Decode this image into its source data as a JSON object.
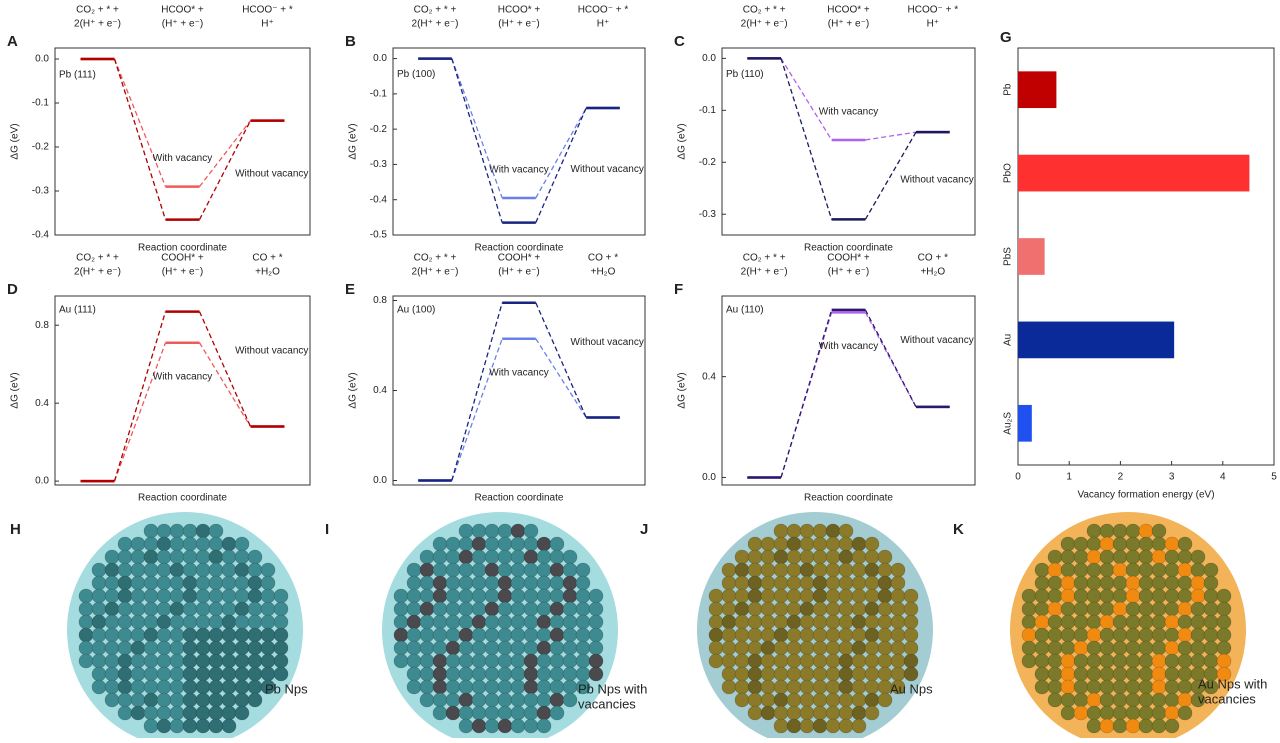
{
  "chart_data": [
    {
      "type": "energy-profile",
      "panel": "A",
      "surface": "Pb (111)",
      "xlabel": "Reaction coordinate",
      "ylabel": "ΔG (eV)",
      "categories": [
        [
          "CO₂ + * +",
          "2(H⁺ + e⁻)"
        ],
        [
          "HCOO* +",
          "(H⁺ + e⁻)"
        ],
        [
          "HCOO⁻ + *",
          "H⁺"
        ]
      ],
      "series": [
        {
          "name": "With vacancy",
          "color": "#f05a5a",
          "values": [
            0,
            -0.29,
            -0.14
          ]
        },
        {
          "name": "Without vacancy",
          "color": "#b00000",
          "values": [
            0,
            -0.365,
            -0.14
          ]
        }
      ],
      "ylim": [
        -0.4,
        0.025
      ],
      "yticks": [
        {
          "value": 0,
          "label": "0.0"
        },
        -0.1,
        -0.2,
        -0.3,
        -0.4
      ]
    },
    {
      "type": "energy-profile",
      "panel": "B",
      "surface": "Pb (100)",
      "xlabel": "Reaction coordinate",
      "ylabel": "ΔG (eV)",
      "categories": [
        [
          "CO₂ + * +",
          "2(H⁺ + e⁻)"
        ],
        [
          "HCOO* +",
          "(H⁺ + e⁻)"
        ],
        [
          "HCOO⁻ + *",
          "H⁺"
        ]
      ],
      "series": [
        {
          "name": "With vacancy",
          "color": "#6a80e8",
          "values": [
            0,
            -0.395,
            -0.14
          ]
        },
        {
          "name": "Without vacancy",
          "color": "#1a237e",
          "values": [
            0,
            -0.465,
            -0.14
          ]
        }
      ],
      "ylim": [
        -0.5,
        0.03
      ],
      "yticks": [
        {
          "value": 0,
          "label": "0.0"
        },
        -0.1,
        -0.2,
        -0.3,
        -0.4,
        -0.5
      ]
    },
    {
      "type": "energy-profile",
      "panel": "C",
      "surface": "Pb (110)",
      "xlabel": "Reaction coordinate",
      "ylabel": "ΔG (eV)",
      "categories": [
        [
          "CO₂ + * +",
          "2(H⁺ + e⁻)"
        ],
        [
          "HCOO* +",
          "(H⁺ + e⁻)"
        ],
        [
          "HCOO⁻ + *",
          "H⁺"
        ]
      ],
      "series": [
        {
          "name": "With vacancy",
          "color": "#b060f0",
          "values": [
            0,
            -0.157,
            -0.142
          ]
        },
        {
          "name": "Without vacancy",
          "color": "#1a1a5a",
          "values": [
            0,
            -0.31,
            -0.142
          ]
        }
      ],
      "ylim": [
        -0.34,
        0.02
      ],
      "yticks": [
        {
          "value": 0,
          "label": "0.0"
        },
        -0.1,
        -0.2,
        -0.3
      ]
    },
    {
      "type": "energy-profile",
      "panel": "D",
      "surface": "Au (111)",
      "xlabel": "Reaction coordinate",
      "ylabel": "ΔG (eV)",
      "categories": [
        [
          "CO₂ + * +",
          "2(H⁺ + e⁻)"
        ],
        [
          "COOH* +",
          "(H⁺ + e⁻)"
        ],
        [
          "CO + *",
          "+H₂O"
        ]
      ],
      "series": [
        {
          "name": "With vacancy",
          "color": "#f05a5a",
          "values": [
            0,
            0.71,
            0.28
          ]
        },
        {
          "name": "Without vacancy",
          "color": "#b00000",
          "values": [
            0,
            0.87,
            0.28
          ]
        }
      ],
      "ylim": [
        -0.02,
        0.95
      ],
      "yticks": [
        {
          "value": 0,
          "label": "0.0"
        },
        0.4,
        0.8
      ]
    },
    {
      "type": "energy-profile",
      "panel": "E",
      "surface": "Au (100)",
      "xlabel": "Reaction coordinate",
      "ylabel": "ΔG (eV)",
      "categories": [
        [
          "CO₂ + * +",
          "2(H⁺ + e⁻)"
        ],
        [
          "COOH* +",
          "(H⁺ + e⁻)"
        ],
        [
          "CO + *",
          "+H₂O"
        ]
      ],
      "series": [
        {
          "name": "With vacancy",
          "color": "#6a80e8",
          "values": [
            0,
            0.63,
            0.28
          ]
        },
        {
          "name": "Without vacancy",
          "color": "#1a237e",
          "values": [
            0,
            0.79,
            0.28
          ]
        }
      ],
      "ylim": [
        -0.02,
        0.82
      ],
      "yticks": [
        {
          "value": 0,
          "label": "0.0"
        },
        0.4,
        0.8
      ]
    },
    {
      "type": "energy-profile",
      "panel": "F",
      "surface": "Au (110)",
      "xlabel": "Reaction coordinate",
      "ylabel": "ΔG (eV)",
      "categories": [
        [
          "CO₂ + * +",
          "2(H⁺ + e⁻)"
        ],
        [
          "COOH* +",
          "(H⁺ + e⁻)"
        ],
        [
          "CO + *",
          "+H₂O"
        ]
      ],
      "series": [
        {
          "name": "With vacancy",
          "color": "#b060f0",
          "values": [
            0,
            0.655,
            0.28
          ]
        },
        {
          "name": "Without vacancy",
          "color": "#2a1a6a",
          "values": [
            0,
            0.665,
            0.28
          ]
        }
      ],
      "ylim": [
        -0.03,
        0.72
      ],
      "yticks": [
        {
          "value": 0,
          "label": "0.0"
        },
        0.4
      ]
    },
    {
      "type": "hbar",
      "panel": "G",
      "xlabel": "Vacancy formation energy (eV)",
      "categories": [
        "Pb",
        "PbO",
        "PbS",
        "Au",
        "Au₂S"
      ],
      "values": [
        0.75,
        4.52,
        0.52,
        3.05,
        0.27
      ],
      "colors": [
        "#c00000",
        "#ff3030",
        "#f07070",
        "#0a2a9a",
        "#2050f0"
      ],
      "xlim": [
        0,
        5
      ],
      "xticks": [
        0,
        1,
        2,
        3,
        4,
        5
      ]
    }
  ],
  "images": [
    {
      "panel": "H",
      "caption": [
        "Pb Nps"
      ]
    },
    {
      "panel": "I",
      "caption": [
        "Pb Nps with",
        "vacancies"
      ]
    },
    {
      "panel": "J",
      "caption": [
        "Au Nps"
      ]
    },
    {
      "panel": "K",
      "caption": [
        "Au Nps with",
        "vacancies"
      ]
    }
  ]
}
